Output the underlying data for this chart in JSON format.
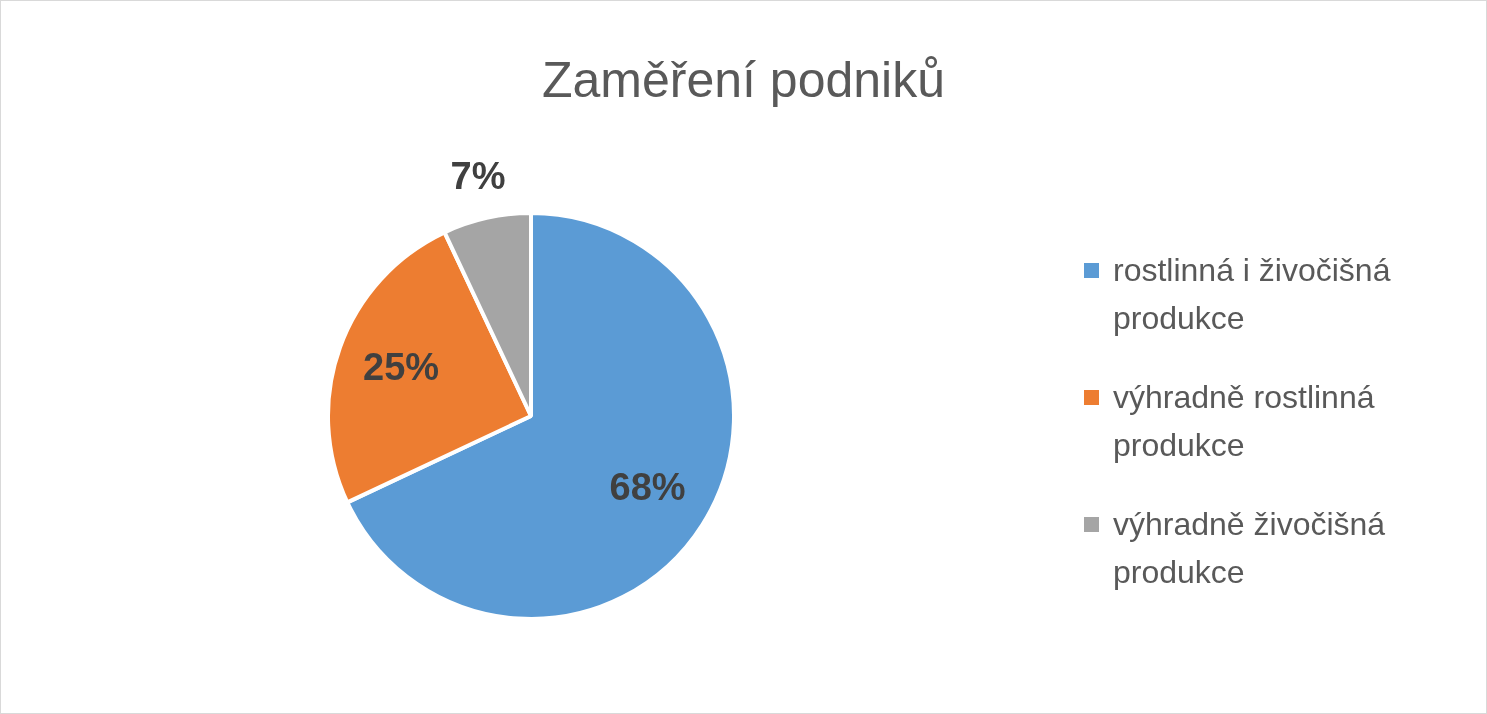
{
  "chart_data": {
    "type": "pie",
    "title": "Zaměření podniků",
    "categories": [
      "rostlinná i živočišná produkce",
      "výhradně rostlinná produkce",
      "výhradně živočišná produkce"
    ],
    "values": [
      68,
      25,
      7
    ],
    "colors": [
      "#5b9bd5",
      "#ed7d31",
      "#a5a5a5"
    ],
    "value_labels": [
      "68%",
      "25%",
      "7%"
    ],
    "legend": "right"
  }
}
